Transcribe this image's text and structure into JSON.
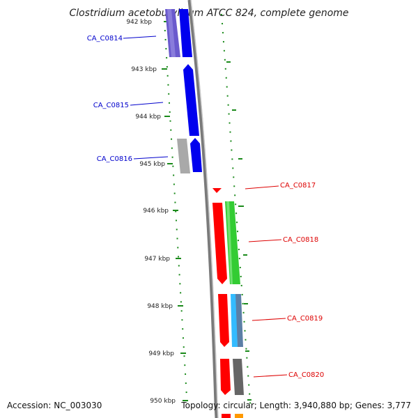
{
  "title": "Clostridium acetobutylicum ATCC 824, complete genome",
  "footer": {
    "accession": "Accession: NC_003030",
    "summary": "Topology: circular; Length: 3,940,880 bp; Genes: 3,777"
  },
  "ticks": [
    "942 kbp",
    "943 kbp",
    "944 kbp",
    "945 kbp",
    "946 kbp",
    "947 kbp",
    "948 kbp",
    "949 kbp",
    "950 kbp"
  ],
  "genes_left": [
    {
      "label": "CA_C0814",
      "color": "#0000cc"
    },
    {
      "label": "CA_C0815",
      "color": "#0000cc"
    },
    {
      "label": "CA_C0816",
      "color": "#0000cc"
    }
  ],
  "genes_right": [
    {
      "label": "CA_C0817",
      "color": "#dd0000"
    },
    {
      "label": "CA_C0818",
      "color": "#dd0000"
    },
    {
      "label": "CA_C0819",
      "color": "#dd0000"
    },
    {
      "label": "CA_C0820",
      "color": "#dd0000"
    }
  ],
  "colors": {
    "backbone": "#8a8a8a",
    "dots": "#1a8a1a",
    "blue": "#0000ff",
    "purple": "#6a5acd",
    "red": "#ff0000",
    "green": "#33cc33",
    "cyan": "#33aaff",
    "grey": "#999999"
  }
}
